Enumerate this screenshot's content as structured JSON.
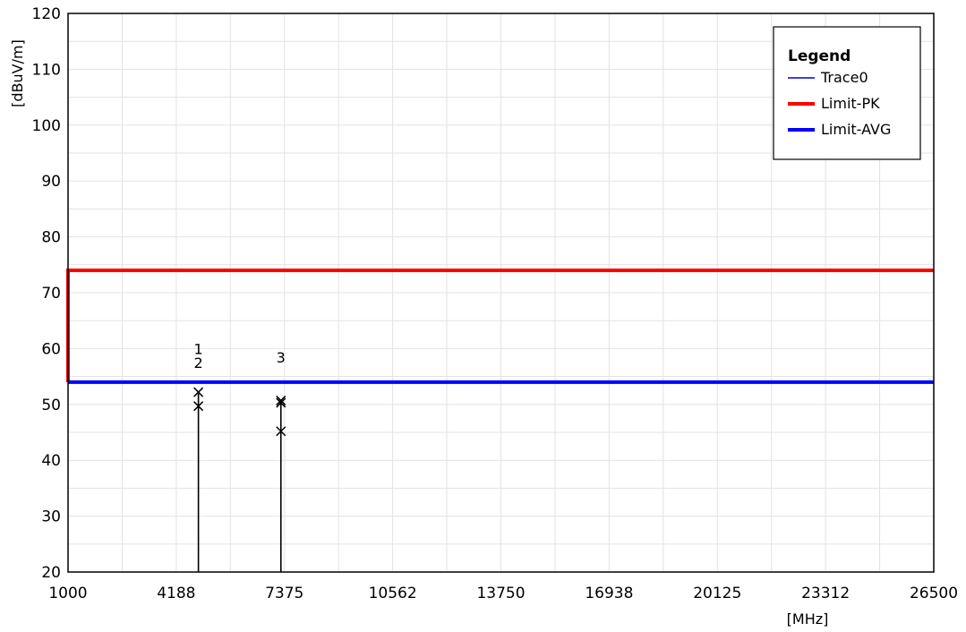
{
  "chart_data": {
    "type": "line",
    "title": "",
    "xlabel": "[MHz]",
    "ylabel": "[dBuV/m]",
    "xlim": [
      1000,
      26500
    ],
    "ylim": [
      20,
      120
    ],
    "x_ticks": [
      "1000",
      "4188",
      "7375",
      "10562",
      "13750",
      "16938",
      "20125",
      "23312",
      "26500"
    ],
    "y_ticks": [
      "20",
      "30",
      "40",
      "50",
      "60",
      "70",
      "80",
      "90",
      "100",
      "110",
      "120"
    ],
    "grid": true,
    "legend": {
      "title": "Legend",
      "placement": "top-right",
      "entries": [
        "Trace0",
        "Limit-PK",
        "Limit-AVG"
      ]
    },
    "series": [
      {
        "name": "Trace0",
        "color": "#0000cc",
        "spikes": [
          {
            "x": 4840,
            "y": 52
          },
          {
            "x": 7270,
            "y": 50.5
          }
        ]
      },
      {
        "name": "Limit-PK",
        "color": "#ff0000",
        "points": [
          [
            1000,
            54
          ],
          [
            1000,
            74
          ],
          [
            26500,
            74
          ]
        ]
      },
      {
        "name": "Limit-AVG",
        "color": "#0000ff",
        "points": [
          [
            1000,
            54
          ],
          [
            26500,
            54
          ]
        ]
      }
    ],
    "markers": [
      {
        "label": "1",
        "x": 4840,
        "y": 52.2,
        "text_y": 59
      },
      {
        "label": "2",
        "x": 4840,
        "y": 49.7,
        "text_y": 56.5
      },
      {
        "label": "3",
        "x": 7270,
        "y": 50.7,
        "text_y": 57.5
      },
      {
        "label": "",
        "x": 7270,
        "y": 50.3,
        "text_y": null
      },
      {
        "label": "",
        "x": 7270,
        "y": 45.2,
        "text_y": null
      }
    ]
  }
}
